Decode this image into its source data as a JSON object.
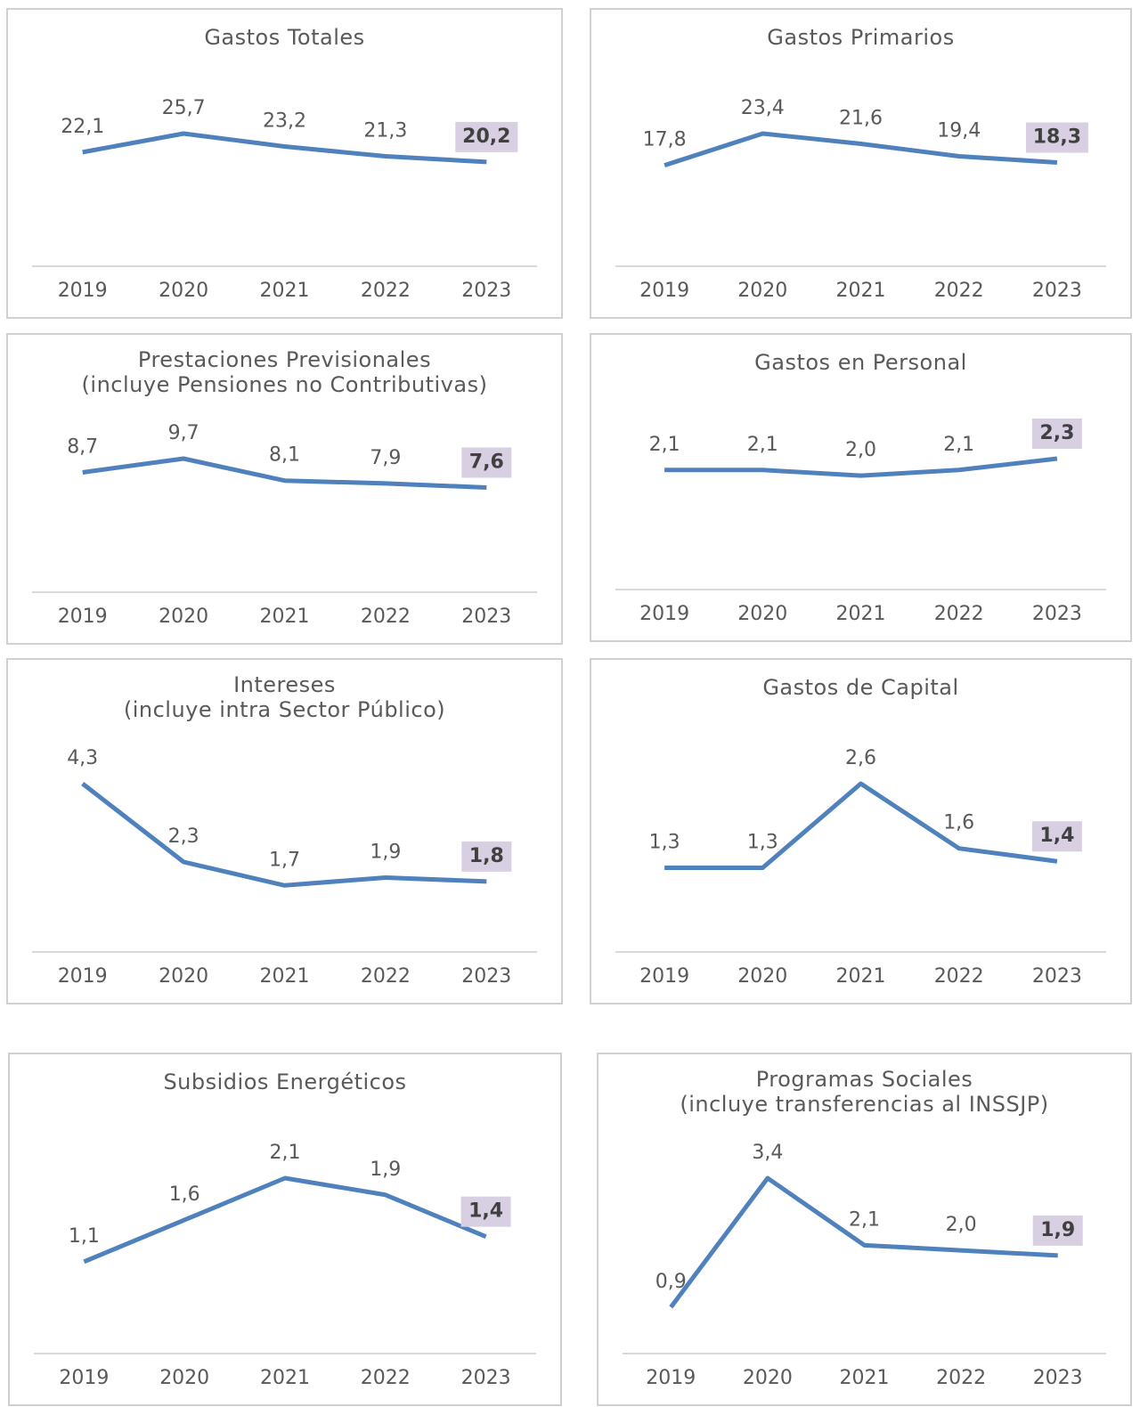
{
  "chart_data": [
    {
      "type": "line",
      "title": "Gastos Totales",
      "categories": [
        "2019",
        "2020",
        "2021",
        "2022",
        "2023"
      ],
      "values": [
        22.1,
        25.7,
        23.2,
        21.3,
        20.2
      ],
      "value_labels": [
        "22,1",
        "25,7",
        "23,2",
        "21,3",
        "20,2"
      ],
      "color": "#4f81bd",
      "highlight_color": "#d9cfe3"
    },
    {
      "type": "line",
      "title": "Gastos Primarios",
      "categories": [
        "2019",
        "2020",
        "2021",
        "2022",
        "2023"
      ],
      "values": [
        17.8,
        23.4,
        21.6,
        19.4,
        18.3
      ],
      "value_labels": [
        "17,8",
        "23,4",
        "21,6",
        "19,4",
        "18,3"
      ],
      "color": "#4f81bd",
      "highlight_color": "#d9cfe3"
    },
    {
      "type": "line",
      "title": "Prestaciones Previsionales",
      "subtitle": "(incluye Pensiones no Contributivas)",
      "categories": [
        "2019",
        "2020",
        "2021",
        "2022",
        "2023"
      ],
      "values": [
        8.7,
        9.7,
        8.1,
        7.9,
        7.6
      ],
      "value_labels": [
        "8,7",
        "9,7",
        "8,1",
        "7,9",
        "7,6"
      ],
      "color": "#4f81bd",
      "highlight_color": "#d9cfe3"
    },
    {
      "type": "line",
      "title": "Gastos en Personal",
      "categories": [
        "2019",
        "2020",
        "2021",
        "2022",
        "2023"
      ],
      "values": [
        2.1,
        2.1,
        2.0,
        2.1,
        2.3
      ],
      "value_labels": [
        "2,1",
        "2,1",
        "2,0",
        "2,1",
        "2,3"
      ],
      "color": "#4f81bd",
      "highlight_color": "#d9cfe3"
    },
    {
      "type": "line",
      "title": "Intereses",
      "subtitle": "(incluye intra Sector Público)",
      "categories": [
        "2019",
        "2020",
        "2021",
        "2022",
        "2023"
      ],
      "values": [
        4.3,
        2.3,
        1.7,
        1.9,
        1.8
      ],
      "value_labels": [
        "4,3",
        "2,3",
        "1,7",
        "1,9",
        "1,8"
      ],
      "color": "#4f81bd",
      "highlight_color": "#d9cfe3"
    },
    {
      "type": "line",
      "title": "Gastos de Capital",
      "categories": [
        "2019",
        "2020",
        "2021",
        "2022",
        "2023"
      ],
      "values": [
        1.3,
        1.3,
        2.6,
        1.6,
        1.4
      ],
      "value_labels": [
        "1,3",
        "1,3",
        "2,6",
        "1,6",
        "1,4"
      ],
      "color": "#4f81bd",
      "highlight_color": "#d9cfe3"
    },
    {
      "type": "line",
      "title": "Subsidios Energéticos",
      "categories": [
        "2019",
        "2020",
        "2021",
        "2022",
        "2023"
      ],
      "values": [
        1.1,
        1.6,
        2.1,
        1.9,
        1.4
      ],
      "value_labels": [
        "1,1",
        "1,6",
        "2,1",
        "1,9",
        "1,4"
      ],
      "color": "#4f81bd",
      "highlight_color": "#d9cfe3"
    },
    {
      "type": "line",
      "title": "Programas Sociales",
      "subtitle": "(incluye transferencias al INSSJP)",
      "categories": [
        "2019",
        "2020",
        "2021",
        "2022",
        "2023"
      ],
      "values": [
        0.9,
        3.4,
        2.1,
        2.0,
        1.9
      ],
      "value_labels": [
        "0,9",
        "3,4",
        "2,1",
        "2,0",
        "1,9"
      ],
      "color": "#4f81bd",
      "highlight_color": "#d9cfe3"
    }
  ]
}
